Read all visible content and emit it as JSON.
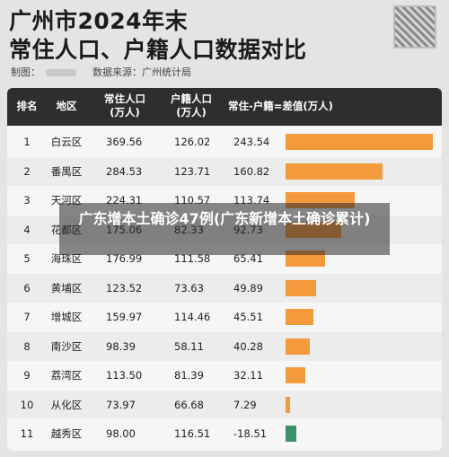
{
  "header": {
    "title_line1": "广州市2024年末",
    "title_line2": "常住人口、户籍人口数据对比",
    "maker_label": "制图：",
    "source": "数据来源：广州统计局"
  },
  "overlay_text": "广东增本土确诊47例(广东新增本土确诊累计)",
  "colors": {
    "positive": "#f39a3c",
    "negative": "#3f8f6a",
    "header_bg": "#2e2e2e"
  },
  "chart_data": {
    "type": "table",
    "columns": [
      "排名",
      "地区",
      "常住人口\n(万人)",
      "户籍人口\n(万人)",
      "常住-户籍=差值(万人)"
    ],
    "rows": [
      {
        "rank": "1",
        "district": "白云区",
        "resident": "369.56",
        "registered": "126.02",
        "diff": "243.54",
        "value": 243.54
      },
      {
        "rank": "2",
        "district": "番禺区",
        "resident": "284.53",
        "registered": "123.71",
        "diff": "160.82",
        "value": 160.82
      },
      {
        "rank": "3",
        "district": "天河区",
        "resident": "224.31",
        "registered": "110.57",
        "diff": "113.74",
        "value": 113.74
      },
      {
        "rank": "4",
        "district": "花都区",
        "resident": "175.06",
        "registered": "82.33",
        "diff": "92.73",
        "value": 92.73
      },
      {
        "rank": "5",
        "district": "海珠区",
        "resident": "176.99",
        "registered": "111.58",
        "diff": "65.41",
        "value": 65.41
      },
      {
        "rank": "6",
        "district": "黄埔区",
        "resident": "123.52",
        "registered": "73.63",
        "diff": "49.89",
        "value": 49.89
      },
      {
        "rank": "7",
        "district": "增城区",
        "resident": "159.97",
        "registered": "114.46",
        "diff": "45.51",
        "value": 45.51
      },
      {
        "rank": "8",
        "district": "南沙区",
        "resident": "98.39",
        "registered": "58.11",
        "diff": "40.28",
        "value": 40.28
      },
      {
        "rank": "9",
        "district": "荔湾区",
        "resident": "113.50",
        "registered": "81.39",
        "diff": "32.11",
        "value": 32.11
      },
      {
        "rank": "10",
        "district": "从化区",
        "resident": "73.97",
        "registered": "66.68",
        "diff": "7.29",
        "value": 7.29
      },
      {
        "rank": "11",
        "district": "越秀区",
        "resident": "98.00",
        "registered": "116.51",
        "diff": "-18.51",
        "value": -18.51
      }
    ]
  }
}
